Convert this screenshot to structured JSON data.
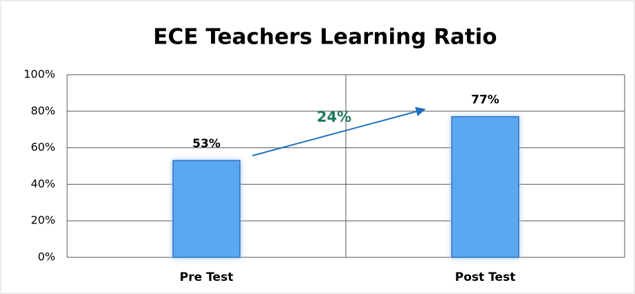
{
  "chart_data": {
    "type": "bar",
    "title": "ECE Teachers Learning Ratio",
    "categories": [
      "Pre Test",
      "Post Test"
    ],
    "values": [
      53,
      77
    ],
    "value_labels": [
      "53%",
      "77%"
    ],
    "color": "#5aa9f0",
    "annotation": "24%",
    "ylim": [
      0,
      100
    ],
    "yticks": [
      {
        "value": 0,
        "label": "0%"
      },
      {
        "value": 20,
        "label": "20%"
      },
      {
        "value": 40,
        "label": "40%"
      },
      {
        "value": 60,
        "label": "60%"
      },
      {
        "value": 80,
        "label": "80%"
      },
      {
        "value": 100,
        "label": "100%"
      }
    ],
    "grid": true
  }
}
